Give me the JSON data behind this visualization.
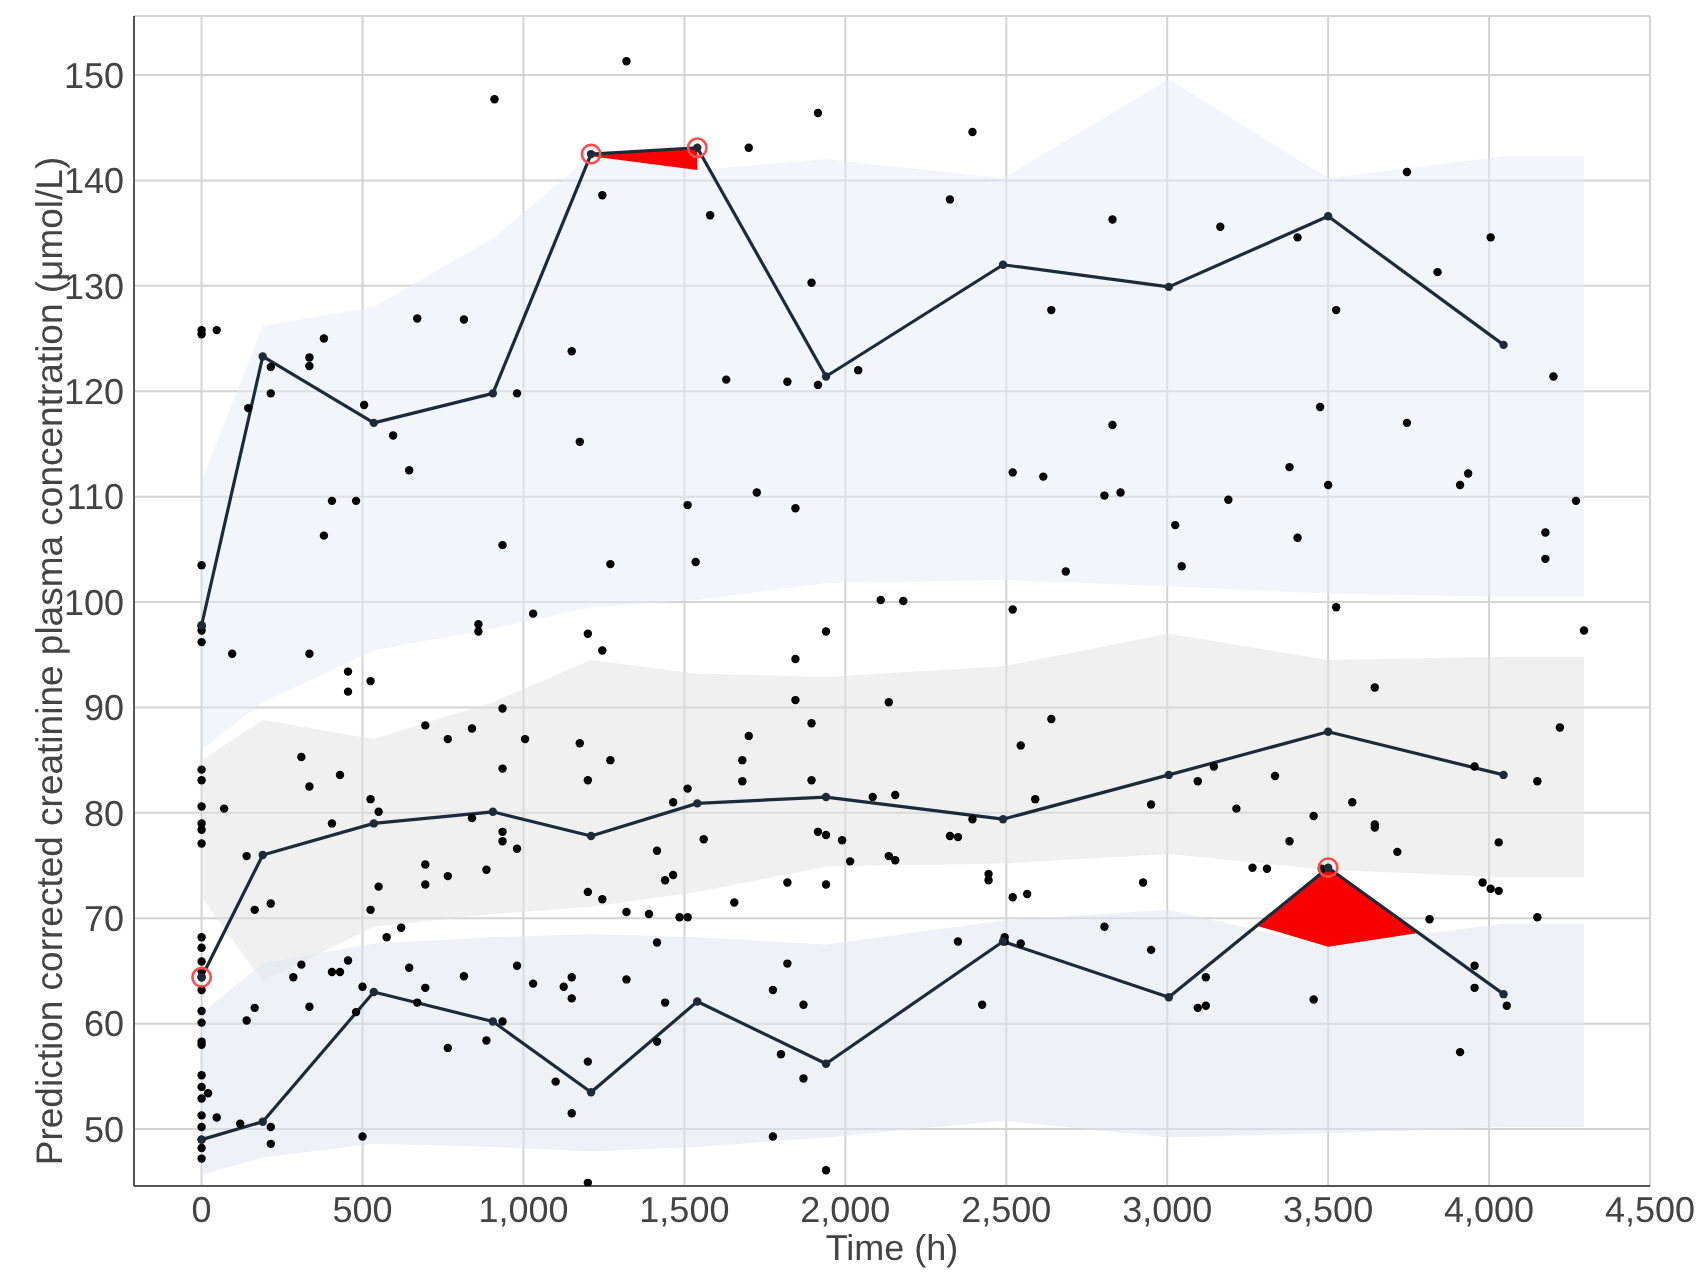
{
  "chart_data": {
    "type": "line",
    "xlabel": "Time (h)",
    "ylabel": "Prediction corrected creatinine plasma concentration (μmol/L)",
    "xlim": [
      -210,
      4500
    ],
    "xticks": [
      0,
      500,
      {
        "value": 1000,
        "label": "1,000"
      },
      {
        "value": 1500,
        "label": "1,500"
      },
      {
        "value": 2000,
        "label": "2,000"
      },
      {
        "value": 2500,
        "label": "2,500"
      },
      {
        "value": 3000,
        "label": "3,000"
      },
      {
        "value": 3500,
        "label": "3,500"
      },
      {
        "value": 4000,
        "label": "4,000"
      },
      {
        "value": 4500,
        "label": "4,500"
      }
    ],
    "ylim": [
      44.6,
      155.6
    ],
    "yticks": [
      50,
      60,
      70,
      80,
      90,
      100,
      110,
      120,
      130,
      140,
      150
    ],
    "grid": true,
    "marker": "circle",
    "series": [
      {
        "color": "#f2f5f9",
        "x": [
          0,
          190,
          535,
          905,
          1210,
          1540,
          1940,
          2490,
          3005,
          3500,
          4045,
          4295
        ],
        "values": [
          null,
          null,
          null,
          null,
          null,
          null,
          null,
          null,
          null,
          null,
          null,
          null
        ],
        "lower": [
          86,
          90.5,
          95.4,
          97.5,
          99.5,
          100.2,
          101.8,
          102.1,
          101.5,
          100.8,
          100.5,
          100.5
        ],
        "upper": [
          111.5,
          126.2,
          128,
          134.5,
          142.3,
          141.0,
          142.0,
          140.2,
          149.6,
          140.2,
          142.3,
          142.3
        ]
      },
      {
        "color": "#f0f0f0",
        "x": [
          0,
          190,
          535,
          905,
          1210,
          1540,
          1940,
          2490,
          3005,
          3500,
          4045,
          4295
        ],
        "values": [
          null,
          null,
          null,
          null,
          null,
          null,
          null,
          null,
          null,
          null,
          null,
          null
        ],
        "lower": [
          72,
          64,
          69.2,
          70.4,
          71.1,
          72.5,
          74.9,
          75.2,
          76.1,
          74.6,
          73.9,
          73.9
        ],
        "upper": [
          85,
          88.8,
          87,
          90.5,
          94.5,
          93.2,
          92.9,
          93.9,
          97.0,
          94.5,
          94.8,
          94.8
        ]
      },
      {
        "color": "#eef2f7",
        "x": [
          0,
          190,
          535,
          905,
          1210,
          1540,
          1940,
          2490,
          3005,
          3500,
          4045,
          4295
        ],
        "values": [
          null,
          null,
          null,
          null,
          null,
          null,
          null,
          null,
          null,
          null,
          null,
          null
        ],
        "lower": [
          45.7,
          47.3,
          48.6,
          48.3,
          47.9,
          48.3,
          49.2,
          50.8,
          49.2,
          49.6,
          50.2,
          50.2
        ],
        "upper": [
          61,
          65.7,
          67.6,
          68.2,
          68.5,
          68.2,
          67.5,
          69.8,
          70.8,
          67.3,
          69.5,
          69.5
        ]
      },
      {
        "color": "#ff0000",
        "x": [
          1210,
          1540
        ],
        "values": [
          null,
          null
        ],
        "lower": [
          142.3,
          141.0
        ],
        "upper": [
          142.5,
          143.1
        ]
      },
      {
        "color": "#fa0000",
        "x": [
          3278,
          3500,
          3780
        ],
        "values": [
          null,
          null,
          null
        ],
        "lower": [
          69.3,
          67.3,
          68.6
        ],
        "upper": [
          69.3,
          74.8,
          68.6
        ]
      },
      {
        "type": "scatter",
        "color": "#000000",
        "x": [
          0,
          0,
          0,
          0,
          0,
          0,
          0,
          0,
          0,
          0,
          0,
          0,
          0,
          0,
          0,
          0,
          0,
          0,
          0,
          0,
          0,
          0,
          0,
          0,
          0,
          0,
          0,
          0,
          0,
          0,
          20,
          47,
          47,
          70,
          95,
          120,
          140,
          140,
          145,
          165,
          165,
          215,
          215,
          215,
          215,
          215,
          285,
          310,
          310,
          335,
          335,
          335,
          335,
          335,
          380,
          380,
          405,
          405,
          405,
          430,
          430,
          455,
          455,
          455,
          480,
          480,
          505,
          500,
          500,
          525,
          525,
          525,
          550,
          550,
          575,
          595,
          620,
          645,
          645,
          670,
          670,
          695,
          695,
          695,
          695,
          765,
          765,
          765,
          815,
          815,
          840,
          840,
          860,
          860,
          885,
          885,
          910,
          935,
          935,
          935,
          935,
          935,
          935,
          980,
          980,
          980,
          1005,
          1030,
          1030,
          1100,
          1125,
          1150,
          1150,
          1150,
          1150,
          1175,
          1175,
          1200,
          1200,
          1200,
          1200,
          1200,
          1245,
          1245,
          1245,
          1270,
          1270,
          1320,
          1320,
          1320,
          1390,
          1415,
          1415,
          1415,
          1440,
          1440,
          1465,
          1465,
          1485,
          1510,
          1510,
          1510,
          1535,
          1560,
          1580,
          1630,
          1655,
          1680,
          1680,
          1700,
          1700,
          1725,
          1775,
          1775,
          1800,
          1820,
          1820,
          1820,
          1845,
          1845,
          1845,
          1870,
          1870,
          1895,
          1895,
          1895,
          1915,
          1915,
          1915,
          1940,
          1940,
          1940,
          1940,
          1990,
          2015,
          2040,
          2085,
          2110,
          2135,
          2135,
          2155,
          2155,
          2180,
          2325,
          2325,
          2350,
          2350,
          2395,
          2395,
          2425,
          2445,
          2445,
          2495,
          2495,
          2520,
          2520,
          2520,
          2545,
          2545,
          2565,
          2590,
          2615,
          2640,
          2640,
          2685,
          2805,
          2805,
          2830,
          2830,
          2855,
          2925,
          2950,
          2950,
          3025,
          3045,
          3095,
          3095,
          3120,
          3120,
          3145,
          3165,
          3190,
          3215,
          3265,
          3310,
          3335,
          3380,
          3380,
          3405,
          3405,
          3455,
          3455,
          3475,
          3480,
          3500,
          3525,
          3525,
          3575,
          3645,
          3645,
          3645,
          3715,
          3745,
          3745,
          3815,
          3840,
          3910,
          3910,
          3935,
          3955,
          3955,
          3955,
          3980,
          4005,
          4005,
          4030,
          4030,
          4055,
          4150,
          4150,
          4175,
          4175,
          4200,
          4220,
          4270,
          4295
        ],
        "values": [
          125.4,
          125.8,
          103.5,
          97.7,
          97.3,
          96.2,
          84.1,
          83.1,
          80.6,
          79.0,
          78.4,
          77.1,
          68.2,
          67.2,
          65.9,
          65.0,
          64.4,
          63.2,
          61.2,
          60.1,
          58.3,
          58.0,
          55.1,
          54.0,
          52.9,
          51.3,
          50.2,
          49.0,
          48.2,
          47.2,
          53.4,
          125.8,
          51.1,
          80.4,
          95.1,
          50.5,
          75.9,
          60.3,
          118.4,
          70.8,
          61.5,
          122.3,
          119.8,
          71.4,
          50.2,
          48.6,
          64.4,
          85.3,
          65.6,
          123.2,
          122.4,
          95.1,
          82.5,
          61.6,
          125.0,
          106.3,
          109.6,
          79.0,
          64.9,
          83.6,
          64.9,
          93.4,
          91.5,
          66.0,
          109.6,
          61.1,
          118.7,
          63.5,
          49.3,
          92.5,
          81.3,
          70.8,
          80.1,
          73.0,
          68.2,
          115.8,
          69.1,
          112.5,
          65.3,
          126.9,
          62.0,
          88.3,
          75.1,
          73.2,
          63.4,
          87.0,
          74.0,
          57.7,
          126.8,
          64.5,
          88.0,
          79.5,
          97.9,
          97.2,
          74.6,
          58.4,
          147.7,
          105.4,
          89.9,
          84.2,
          78.2,
          77.3,
          60.2,
          119.8,
          76.6,
          65.5,
          87.0,
          98.9,
          63.8,
          54.5,
          63.5,
          123.8,
          64.4,
          62.4,
          51.5,
          115.2,
          86.6,
          97.0,
          83.1,
          72.5,
          56.4,
          44.9,
          138.6,
          95.4,
          71.8,
          103.6,
          85.0,
          151.3,
          70.6,
          64.2,
          70.4,
          76.4,
          67.7,
          58.3,
          73.6,
          62.0,
          81.0,
          74.1,
          70.1,
          109.2,
          82.3,
          70.1,
          103.8,
          77.5,
          136.7,
          121.1,
          71.5,
          85.0,
          83.0,
          143.1,
          87.3,
          110.4,
          63.2,
          49.3,
          57.1,
          120.9,
          73.4,
          65.7,
          108.9,
          94.6,
          90.7,
          61.8,
          54.8,
          130.3,
          88.5,
          83.1,
          146.4,
          120.6,
          78.2,
          97.2,
          77.9,
          73.2,
          46.1,
          77.4,
          75.4,
          122.0,
          81.5,
          100.2,
          90.5,
          75.9,
          81.7,
          75.5,
          100.1,
          138.2,
          77.8,
          77.7,
          67.8,
          144.6,
          79.4,
          61.8,
          74.2,
          73.6,
          68.2,
          67.8,
          112.3,
          99.3,
          72.0,
          86.4,
          67.6,
          72.3,
          81.3,
          111.9,
          127.7,
          88.9,
          102.9,
          110.1,
          69.2,
          136.3,
          116.8,
          110.4,
          73.4,
          80.8,
          67.0,
          107.3,
          103.4,
          83.0,
          61.5,
          64.4,
          61.7,
          84.4,
          135.6,
          109.7,
          80.4,
          74.8,
          74.7,
          83.5,
          112.8,
          77.3,
          134.6,
          106.1,
          79.7,
          62.3,
          118.5,
          74.7,
          111.1,
          127.7,
          99.5,
          81.0,
          91.9,
          78.9,
          78.6,
          76.3,
          140.8,
          117.0,
          69.9,
          131.3,
          111.1,
          57.3,
          112.2,
          84.4,
          65.5,
          63.4,
          73.4,
          134.6,
          72.8,
          77.2,
          72.6,
          61.7,
          83.0,
          70.1,
          106.6,
          104.1,
          121.4,
          88.1,
          109.6,
          97.3
        ]
      },
      {
        "color": "#1c2a3a",
        "x": [
          0,
          190,
          535,
          905,
          1210,
          1540,
          1940,
          2490,
          3005,
          3500,
          4045
        ],
        "values": [
          97.8,
          123.3,
          117.0,
          119.8,
          142.5,
          143.1,
          121.4,
          132.0,
          129.9,
          136.6,
          124.4
        ],
        "colors": [
          "#1c2a3a",
          "#1c2a3a",
          "#1c2a3a",
          "#1c2a3a",
          "#ff4d4d",
          "#ff4d4d",
          "#1c2a3a",
          "#1c2a3a",
          "#1c2a3a",
          "#1c2a3a",
          "#1c2a3a"
        ]
      },
      {
        "color": "#1c2a3a",
        "x": [
          0,
          190,
          535,
          905,
          1210,
          1540,
          1940,
          2490,
          3005,
          3500,
          4045
        ],
        "values": [
          64.4,
          76.0,
          79.0,
          80.1,
          77.8,
          80.9,
          81.5,
          79.4,
          83.6,
          87.7,
          83.6
        ],
        "colors": [
          "#ff4d4d",
          "#1c2a3a",
          "#1c2a3a",
          "#1c2a3a",
          "#1c2a3a",
          "#1c2a3a",
          "#1c2a3a",
          "#1c2a3a",
          "#1c2a3a",
          "#1c2a3a",
          "#1c2a3a"
        ]
      },
      {
        "color": "#1c2a3a",
        "x": [
          0,
          190,
          535,
          905,
          1210,
          1540,
          1940,
          2490,
          3005,
          3500,
          4045
        ],
        "values": [
          49.0,
          50.7,
          63.0,
          60.2,
          53.5,
          62.1,
          56.2,
          67.8,
          62.5,
          74.8,
          62.8
        ],
        "colors": [
          "#1c2a3a",
          "#1c2a3a",
          "#1c2a3a",
          "#1c2a3a",
          "#1c2a3a",
          "#1c2a3a",
          "#1c2a3a",
          "#1c2a3a",
          "#1c2a3a",
          "#ff4d4d",
          "#1c2a3a"
        ]
      }
    ]
  }
}
